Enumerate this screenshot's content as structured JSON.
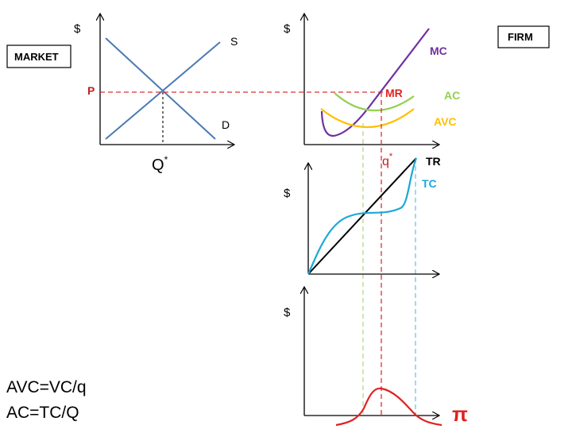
{
  "market": {
    "label": "MARKET",
    "y_axis": "$",
    "supply": "S",
    "demand": "D",
    "price": "P",
    "quantity": "Q",
    "quantity_sup": "*"
  },
  "firm": {
    "label": "FIRM",
    "cost_panel": {
      "y_axis": "$",
      "mc": "MC",
      "mr": "MR",
      "ac": "AC",
      "avc": "AVC",
      "quantity": "q",
      "quantity_sup": "*"
    },
    "total_panel": {
      "y_axis": "$",
      "tr": "TR",
      "tc": "TC"
    },
    "profit_panel": {
      "y_axis": "$",
      "profit": "π"
    }
  },
  "formulas": {
    "avc": "AVC=VC/q",
    "ac": "AC=TC/Q"
  },
  "colors": {
    "axis": "#000000",
    "market_lines": "#4a7ab5",
    "price_dash": "#e03030",
    "mc": "#7030a0",
    "ac": "#92d050",
    "avc": "#ffc000",
    "tc": "#1aa8d8",
    "tr": "#000000",
    "profit": "#e02020",
    "mr_label": "#e02020",
    "guide_green": "#b4d88a",
    "guide_red": "#e03030",
    "guide_blue": "#6ec6e6"
  }
}
